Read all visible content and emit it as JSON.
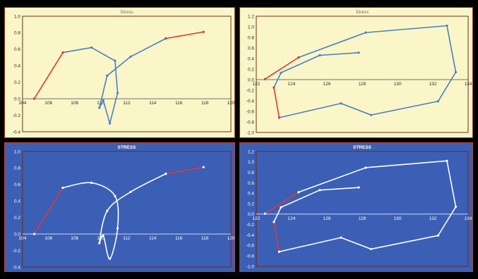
{
  "chart_data": [
    {
      "type": "scatter",
      "title": "Stress",
      "theme": "yellow",
      "smooth": false,
      "xlim": [
        104,
        120
      ],
      "ylim": [
        -0.4,
        1.0
      ],
      "x_ticks": [
        104,
        106,
        108,
        110,
        112,
        114,
        116,
        118,
        120
      ],
      "y_ticks": [
        -0.4,
        -0.2,
        0.0,
        0.2,
        0.4,
        0.6,
        0.8,
        1.0
      ],
      "x_tick_labels": [
        "104",
        "106",
        "108",
        "110",
        "112",
        "114",
        "116",
        "118",
        "120"
      ],
      "y_tick_labels": [
        "-0.4",
        "-0.2",
        "0.0",
        "0.2",
        "0.4",
        "0.6",
        "0.8",
        "1.0"
      ],
      "grid": false,
      "series": [
        {
          "color": "#4a7fc1",
          "points": [
            [
              107.1,
              0.56
            ],
            [
              109.3,
              0.62
            ],
            [
              111.1,
              0.46
            ],
            [
              111.3,
              0.07
            ],
            [
              110.7,
              -0.3
            ],
            [
              110.2,
              -0.02
            ],
            [
              109.9,
              -0.11
            ],
            [
              110.5,
              0.28
            ],
            [
              112.3,
              0.51
            ],
            [
              115.0,
              0.73
            ]
          ]
        },
        {
          "color": "#d63a3a",
          "points": [
            [
              104.9,
              0.0
            ],
            [
              107.1,
              0.56
            ]
          ]
        },
        {
          "color": "#d63a3a",
          "points": [
            [
              115.0,
              0.73
            ],
            [
              117.9,
              0.81
            ]
          ]
        }
      ]
    },
    {
      "type": "scatter",
      "title": "Stress",
      "theme": "yellow",
      "smooth": false,
      "xlim": [
        122,
        134
      ],
      "ylim": [
        -1.0,
        1.2
      ],
      "x_ticks": [
        122,
        124,
        126,
        128,
        130,
        132,
        134
      ],
      "y_ticks": [
        -1.0,
        -0.8,
        -0.6,
        -0.4,
        -0.2,
        0.0,
        0.2,
        0.4,
        0.6,
        0.8,
        1.0,
        1.2
      ],
      "x_tick_labels": [
        "122",
        "124",
        "126",
        "128",
        "130",
        "132",
        "134"
      ],
      "y_tick_labels": [
        "-1.0",
        "-0.8",
        "-0.6",
        "-0.4",
        "-0.2",
        "0.0",
        "0.2",
        "0.4",
        "0.6",
        "0.8",
        "1.0",
        "1.2"
      ],
      "grid": false,
      "series": [
        {
          "color": "#4a7fc1",
          "points": [
            [
              124.4,
              0.42
            ],
            [
              128.2,
              0.89
            ],
            [
              132.8,
              1.02
            ],
            [
              133.3,
              0.14
            ],
            [
              132.3,
              -0.41
            ],
            [
              128.5,
              -0.67
            ],
            [
              126.8,
              -0.45
            ],
            [
              123.3,
              -0.72
            ]
          ]
        },
        {
          "color": "#4a7fc1",
          "points": [
            [
              123.0,
              -0.15
            ],
            [
              123.4,
              0.13
            ],
            [
              125.6,
              0.46
            ],
            [
              127.8,
              0.51
            ]
          ]
        },
        {
          "color": "#d63a3a",
          "points": [
            [
              122.5,
              0.01
            ],
            [
              124.4,
              0.42
            ]
          ]
        },
        {
          "color": "#d63a3a",
          "points": [
            [
              123.3,
              -0.72
            ],
            [
              123.0,
              -0.15
            ]
          ]
        }
      ]
    },
    {
      "type": "scatter",
      "title": "STRESS",
      "theme": "blue",
      "smooth": true,
      "xlim": [
        104,
        120
      ],
      "ylim": [
        -0.4,
        1.0
      ],
      "x_ticks": [
        104,
        106,
        108,
        110,
        112,
        114,
        116,
        118,
        120
      ],
      "y_ticks": [
        -0.4,
        -0.2,
        0.0,
        0.2,
        0.4,
        0.6,
        0.8,
        1.0
      ],
      "x_tick_labels": [
        "104",
        "106",
        "108",
        "110",
        "112",
        "114",
        "116",
        "118",
        "120"
      ],
      "y_tick_labels": [
        "-0.4",
        "-0.2",
        "0.0",
        "0.2",
        "0.4",
        "0.6",
        "0.8",
        "1.0"
      ],
      "grid": false,
      "series": [
        {
          "color": "#ffffff",
          "points": [
            [
              107.1,
              0.56
            ],
            [
              109.3,
              0.62
            ],
            [
              111.1,
              0.46
            ],
            [
              111.3,
              0.07
            ],
            [
              110.7,
              -0.3
            ],
            [
              110.2,
              -0.02
            ],
            [
              109.9,
              -0.11
            ],
            [
              110.5,
              0.28
            ],
            [
              112.3,
              0.51
            ],
            [
              115.0,
              0.73
            ]
          ]
        },
        {
          "color": "#e03a3a",
          "points": [
            [
              104.9,
              0.0
            ],
            [
              107.1,
              0.56
            ]
          ]
        },
        {
          "color": "#e03a3a",
          "points": [
            [
              115.0,
              0.73
            ],
            [
              117.9,
              0.81
            ]
          ]
        }
      ]
    },
    {
      "type": "scatter",
      "title": "STRESS",
      "theme": "blue",
      "smooth": false,
      "xlim": [
        122,
        134
      ],
      "ylim": [
        -1.0,
        1.2
      ],
      "x_ticks": [
        122,
        124,
        126,
        128,
        130,
        132,
        134
      ],
      "y_ticks": [
        -1.0,
        -0.8,
        -0.6,
        -0.4,
        -0.2,
        0.0,
        0.2,
        0.4,
        0.6,
        0.8,
        1.0,
        1.2
      ],
      "x_tick_labels": [
        "122",
        "124",
        "126",
        "128",
        "130",
        "132",
        "134"
      ],
      "y_tick_labels": [
        "-1.0",
        "-0.8",
        "-0.6",
        "-0.4",
        "-0.2",
        "0.0",
        "0.2",
        "0.4",
        "0.6",
        "0.8",
        "1.0",
        "1.2"
      ],
      "grid": false,
      "series": [
        {
          "color": "#ffffff",
          "points": [
            [
              124.4,
              0.42
            ],
            [
              128.2,
              0.89
            ],
            [
              132.8,
              1.02
            ],
            [
              133.3,
              0.14
            ],
            [
              132.3,
              -0.41
            ],
            [
              128.5,
              -0.67
            ],
            [
              126.8,
              -0.45
            ],
            [
              123.3,
              -0.72
            ]
          ]
        },
        {
          "color": "#ffffff",
          "points": [
            [
              123.0,
              -0.15
            ],
            [
              123.4,
              0.13
            ],
            [
              125.6,
              0.46
            ],
            [
              127.8,
              0.51
            ]
          ]
        },
        {
          "color": "#e03a3a",
          "points": [
            [
              122.5,
              0.01
            ],
            [
              124.4,
              0.42
            ]
          ]
        },
        {
          "color": "#e03a3a",
          "points": [
            [
              123.3,
              -0.72
            ],
            [
              123.0,
              -0.15
            ]
          ]
        }
      ]
    }
  ]
}
